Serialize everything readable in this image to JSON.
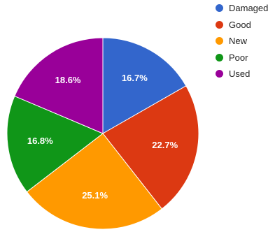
{
  "chart_data": {
    "type": "pie",
    "title": "",
    "categories": [
      "Damaged",
      "Good",
      "New",
      "Poor",
      "Used"
    ],
    "values": [
      16.7,
      22.7,
      25.1,
      16.8,
      18.6
    ],
    "labels": [
      "16.7%",
      "22.7%",
      "25.1%",
      "16.8%",
      "18.6%"
    ],
    "colors": [
      "#3366cc",
      "#dc3912",
      "#ff9900",
      "#109618",
      "#990099"
    ],
    "legend": {
      "position": "top-right",
      "entries": [
        "Damaged",
        "Good",
        "New",
        "Poor",
        "Used"
      ]
    },
    "start_angle_deg": 0,
    "direction": "clockwise"
  }
}
